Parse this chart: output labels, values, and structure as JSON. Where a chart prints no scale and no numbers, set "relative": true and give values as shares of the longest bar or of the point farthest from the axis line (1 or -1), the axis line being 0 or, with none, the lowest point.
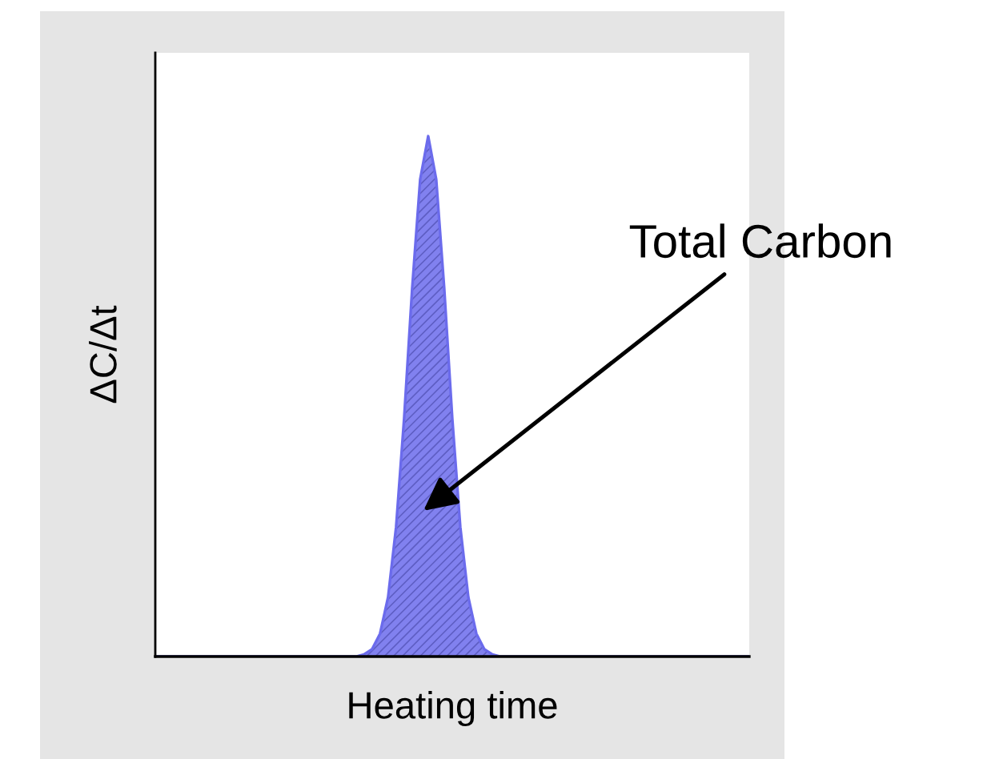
{
  "chart_data": {
    "type": "area",
    "relative": true,
    "xlabel": "Heating time",
    "ylabel": "ΔC/Δt",
    "grid": false,
    "categories": [
      null,
      null,
      null,
      null,
      null,
      null,
      null,
      null,
      null,
      null,
      null,
      null,
      null,
      null,
      null,
      null,
      null,
      null,
      null,
      null,
      null,
      null,
      null,
      null,
      null,
      null,
      null,
      null,
      null,
      null,
      null,
      null,
      null,
      null,
      null,
      null,
      null,
      null,
      null,
      null,
      null,
      null,
      null,
      null,
      null,
      null,
      null,
      null,
      null,
      null,
      null,
      null,
      null,
      null,
      null,
      null,
      null,
      null,
      null,
      null,
      null,
      null,
      null,
      null,
      null,
      null,
      null,
      null,
      null,
      null,
      null,
      null,
      null,
      null,
      null
    ],
    "series": [
      {
        "color": "#6b6bec",
        "values": [
          0,
          0,
          0,
          0,
          0,
          0,
          0,
          0,
          0,
          0,
          0,
          0,
          0,
          0,
          0,
          0,
          0,
          0,
          0,
          0,
          0,
          0,
          0,
          0,
          0,
          0,
          0.004,
          0.014,
          0.044,
          0.114,
          0.249,
          0.458,
          0.707,
          0.917,
          1,
          0.917,
          0.707,
          0.458,
          0.249,
          0.114,
          0.044,
          0.014,
          0.004,
          0,
          0,
          0,
          0,
          0,
          0,
          0,
          0,
          0,
          0,
          0,
          0,
          0,
          0,
          0,
          0,
          0,
          0,
          0,
          0,
          0,
          0,
          0,
          0,
          0,
          0,
          0,
          0,
          0,
          0,
          0,
          0
        ]
      }
    ],
    "annotations": [
      "Total Carbon"
    ]
  }
}
